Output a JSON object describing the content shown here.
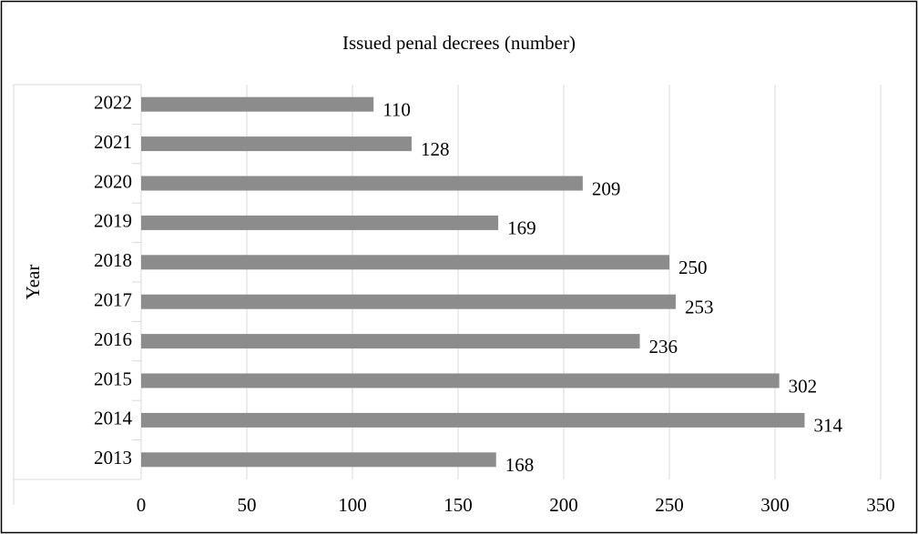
{
  "chart_data": {
    "type": "bar",
    "orientation": "horizontal",
    "title": "Issued penal decrees (number)",
    "y_label": "Year",
    "categories": [
      "2022",
      "2021",
      "2020",
      "2019",
      "2018",
      "2017",
      "2016",
      "2015",
      "2014",
      "2013"
    ],
    "values": [
      110,
      128,
      209,
      169,
      250,
      253,
      236,
      302,
      314,
      168
    ],
    "color": "#8c8c8c",
    "xlim": [
      0,
      350
    ],
    "xticks": [
      0,
      50,
      100,
      150,
      200,
      250,
      300,
      350
    ],
    "grid": true
  }
}
